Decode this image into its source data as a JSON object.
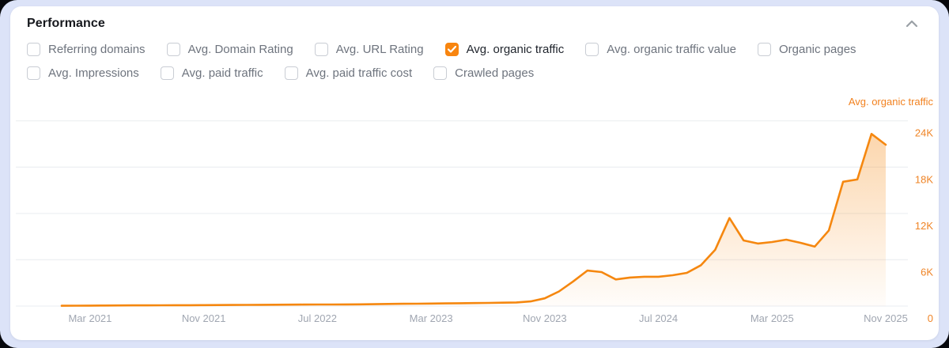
{
  "panel": {
    "title": "Performance"
  },
  "header": {
    "collapse_icon": "chevron-up"
  },
  "metrics": {
    "row1": [
      {
        "label": "Referring domains",
        "checked": false
      },
      {
        "label": "Avg. Domain Rating",
        "checked": false
      },
      {
        "label": "Avg. URL Rating",
        "checked": false
      },
      {
        "label": "Avg. organic traffic",
        "checked": true
      },
      {
        "label": "Avg. organic traffic value",
        "checked": false
      },
      {
        "label": "Organic pages",
        "checked": false
      }
    ],
    "row2": [
      {
        "label": "Avg. Impressions",
        "checked": false
      },
      {
        "label": "Avg. paid traffic",
        "checked": false
      },
      {
        "label": "Avg. paid traffic cost",
        "checked": false
      },
      {
        "label": "Crawled pages",
        "checked": false
      }
    ]
  },
  "colors": {
    "accent": "#f5870f",
    "axis_label_orange": "#ef8426",
    "grid": "#eef0f3",
    "x_label_gray": "#a0a6b1",
    "frame": "#dce3f8",
    "page_bg": "#07080d",
    "checkbox_checked": "#f8850f"
  },
  "chart_data": {
    "type": "area",
    "title": "Avg. organic traffic",
    "legend_position": "top-right",
    "grid": true,
    "ylim": [
      0,
      24000
    ],
    "y_ticks": [
      "24K",
      "18K",
      "12K",
      "6K",
      "0"
    ],
    "y_tick_values": [
      24000,
      18000,
      12000,
      6000,
      0
    ],
    "x_tick_labels": [
      "Mar 2021",
      "Nov 2021",
      "Jul 2022",
      "Mar 2023",
      "Nov 2023",
      "Jul 2024",
      "Mar 2025",
      "Nov 2025"
    ],
    "x_tick_month_index": [
      2,
      10,
      18,
      26,
      34,
      42,
      50,
      58
    ],
    "months": [
      "Jan 2021",
      "Feb 2021",
      "Mar 2021",
      "Apr 2021",
      "May 2021",
      "Jun 2021",
      "Jul 2021",
      "Aug 2021",
      "Sep 2021",
      "Oct 2021",
      "Nov 2021",
      "Dec 2021",
      "Jan 2022",
      "Feb 2022",
      "Mar 2022",
      "Apr 2022",
      "May 2022",
      "Jun 2022",
      "Jul 2022",
      "Aug 2022",
      "Sep 2022",
      "Oct 2022",
      "Nov 2022",
      "Dec 2022",
      "Jan 2023",
      "Feb 2023",
      "Mar 2023",
      "Apr 2023",
      "May 2023",
      "Jun 2023",
      "Jul 2023",
      "Aug 2023",
      "Sep 2023",
      "Oct 2023",
      "Nov 2023",
      "Dec 2023",
      "Jan 2024",
      "Feb 2024",
      "Mar 2024",
      "Apr 2024",
      "May 2024",
      "Jun 2024",
      "Jul 2024",
      "Aug 2024",
      "Sep 2024",
      "Oct 2024",
      "Nov 2024",
      "Dec 2024",
      "Jan 2025",
      "Feb 2025",
      "Mar 2025",
      "Apr 2025",
      "May 2025",
      "Jun 2025",
      "Jul 2025",
      "Aug 2025",
      "Sep 2025",
      "Oct 2025",
      "Nov 2025"
    ],
    "values": [
      40,
      50,
      60,
      70,
      80,
      90,
      95,
      100,
      110,
      115,
      120,
      130,
      140,
      150,
      160,
      170,
      180,
      190,
      200,
      210,
      220,
      230,
      250,
      280,
      300,
      310,
      330,
      350,
      370,
      390,
      410,
      440,
      470,
      600,
      1000,
      1900,
      3200,
      4600,
      4400,
      3450,
      3700,
      3800,
      3800,
      4000,
      4300,
      5300,
      7300,
      11400,
      8500,
      8100,
      8300,
      8600,
      8200,
      7700,
      9800,
      16100,
      16400,
      22300,
      20900
    ],
    "series": [
      {
        "name": "Avg. organic traffic",
        "color": "#f5870f"
      }
    ]
  }
}
